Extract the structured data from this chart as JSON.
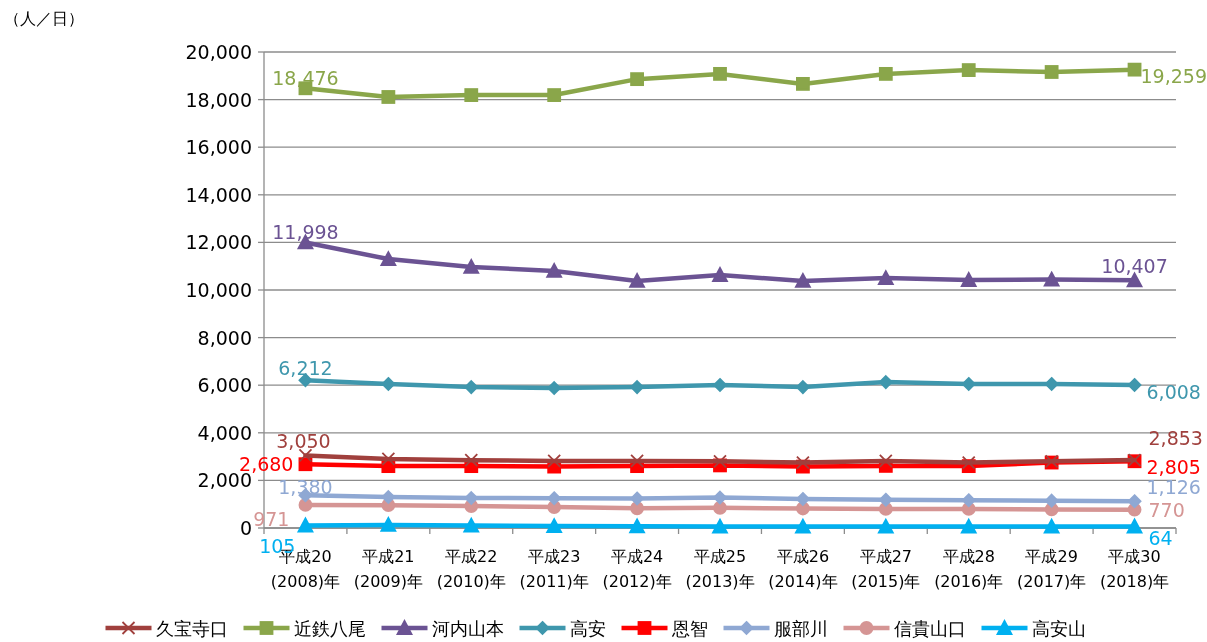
{
  "chart_data": {
    "type": "line",
    "annotations": [
      "（人／日）"
    ],
    "categories": [
      "平成20\n(2008)年",
      "平成21\n(2009)年",
      "平成22\n(2010)年",
      "平成23\n(2011)年",
      "平成24\n(2012)年",
      "平成25\n(2013)年",
      "平成26\n(2014)年",
      "平成27\n(2015)年",
      "平成28\n(2016)年",
      "平成29\n(2017)年",
      "平成30\n(2018)年"
    ],
    "ylim": [
      0,
      20000
    ],
    "yticks": [
      0,
      {
        "value": 2000,
        "label": "2,000"
      },
      {
        "value": 4000,
        "label": "4,000"
      },
      {
        "value": 6000,
        "label": "6,000"
      },
      {
        "value": 8000,
        "label": "8,000"
      },
      {
        "value": 10000,
        "label": "10,000"
      },
      {
        "value": 12000,
        "label": "12,000"
      },
      {
        "value": 14000,
        "label": "14,000"
      },
      {
        "value": 16000,
        "label": "16,000"
      },
      {
        "value": 18000,
        "label": "18,000"
      },
      {
        "value": 20000,
        "label": "20,000"
      }
    ],
    "grid": "y",
    "legend": "bottom",
    "series": [
      {
        "name": "久宝寺口",
        "color": "#a0403d",
        "marker": "cross",
        "values": [
          3050,
          2900,
          2850,
          2820,
          2820,
          2800,
          2750,
          2820,
          2750,
          2800,
          2853
        ],
        "value_labels": [
          "3,050",
          null,
          null,
          null,
          null,
          null,
          null,
          null,
          null,
          null,
          "2,853"
        ]
      },
      {
        "name": "近鉄八尾",
        "color": "#8aa64a",
        "marker": "square",
        "values": [
          18476,
          18110,
          18190,
          18190,
          18860,
          19080,
          18660,
          19080,
          19240,
          19160,
          19259
        ],
        "value_labels": [
          "18,476",
          null,
          null,
          null,
          null,
          null,
          null,
          null,
          null,
          null,
          "19,259"
        ]
      },
      {
        "name": "河内山本",
        "color": "#6b5393",
        "marker": "triangle",
        "values": [
          11998,
          11300,
          10970,
          10800,
          10380,
          10630,
          10380,
          10500,
          10420,
          10440,
          10407
        ],
        "value_labels": [
          "11,998",
          null,
          null,
          null,
          null,
          null,
          null,
          null,
          null,
          null,
          "10,407"
        ]
      },
      {
        "name": "高安",
        "color": "#3f97ad",
        "marker": "diamond",
        "values": [
          6212,
          6050,
          5920,
          5880,
          5920,
          6010,
          5920,
          6130,
          6050,
          6050,
          6008
        ],
        "value_labels": [
          "6,212",
          null,
          null,
          null,
          null,
          null,
          null,
          null,
          null,
          null,
          "6,008"
        ]
      },
      {
        "name": "恩智",
        "color": "#ff0000",
        "marker": "square",
        "values": [
          2680,
          2600,
          2600,
          2580,
          2600,
          2630,
          2580,
          2610,
          2600,
          2750,
          2805
        ],
        "value_labels": [
          "2,680",
          null,
          null,
          null,
          null,
          null,
          null,
          null,
          null,
          null,
          "2,805"
        ]
      },
      {
        "name": "服部川",
        "color": "#8fa8d3",
        "marker": "diamond",
        "values": [
          1380,
          1300,
          1260,
          1250,
          1240,
          1280,
          1220,
          1190,
          1170,
          1150,
          1126
        ],
        "value_labels": [
          "1,380",
          null,
          null,
          null,
          null,
          null,
          null,
          null,
          null,
          null,
          "1,126"
        ]
      },
      {
        "name": "信貴山口",
        "color": "#d59594",
        "marker": "circle",
        "values": [
          971,
          960,
          920,
          880,
          830,
          850,
          820,
          800,
          800,
          780,
          770
        ],
        "value_labels": [
          "971",
          null,
          null,
          null,
          null,
          null,
          null,
          null,
          null,
          null,
          "770"
        ]
      },
      {
        "name": "高安山",
        "color": "#00b0f0",
        "marker": "triangle",
        "values": [
          105,
          130,
          100,
          80,
          70,
          60,
          60,
          60,
          60,
          60,
          64
        ],
        "value_labels": [
          "105",
          null,
          null,
          null,
          null,
          null,
          null,
          null,
          null,
          null,
          "64"
        ]
      }
    ]
  }
}
